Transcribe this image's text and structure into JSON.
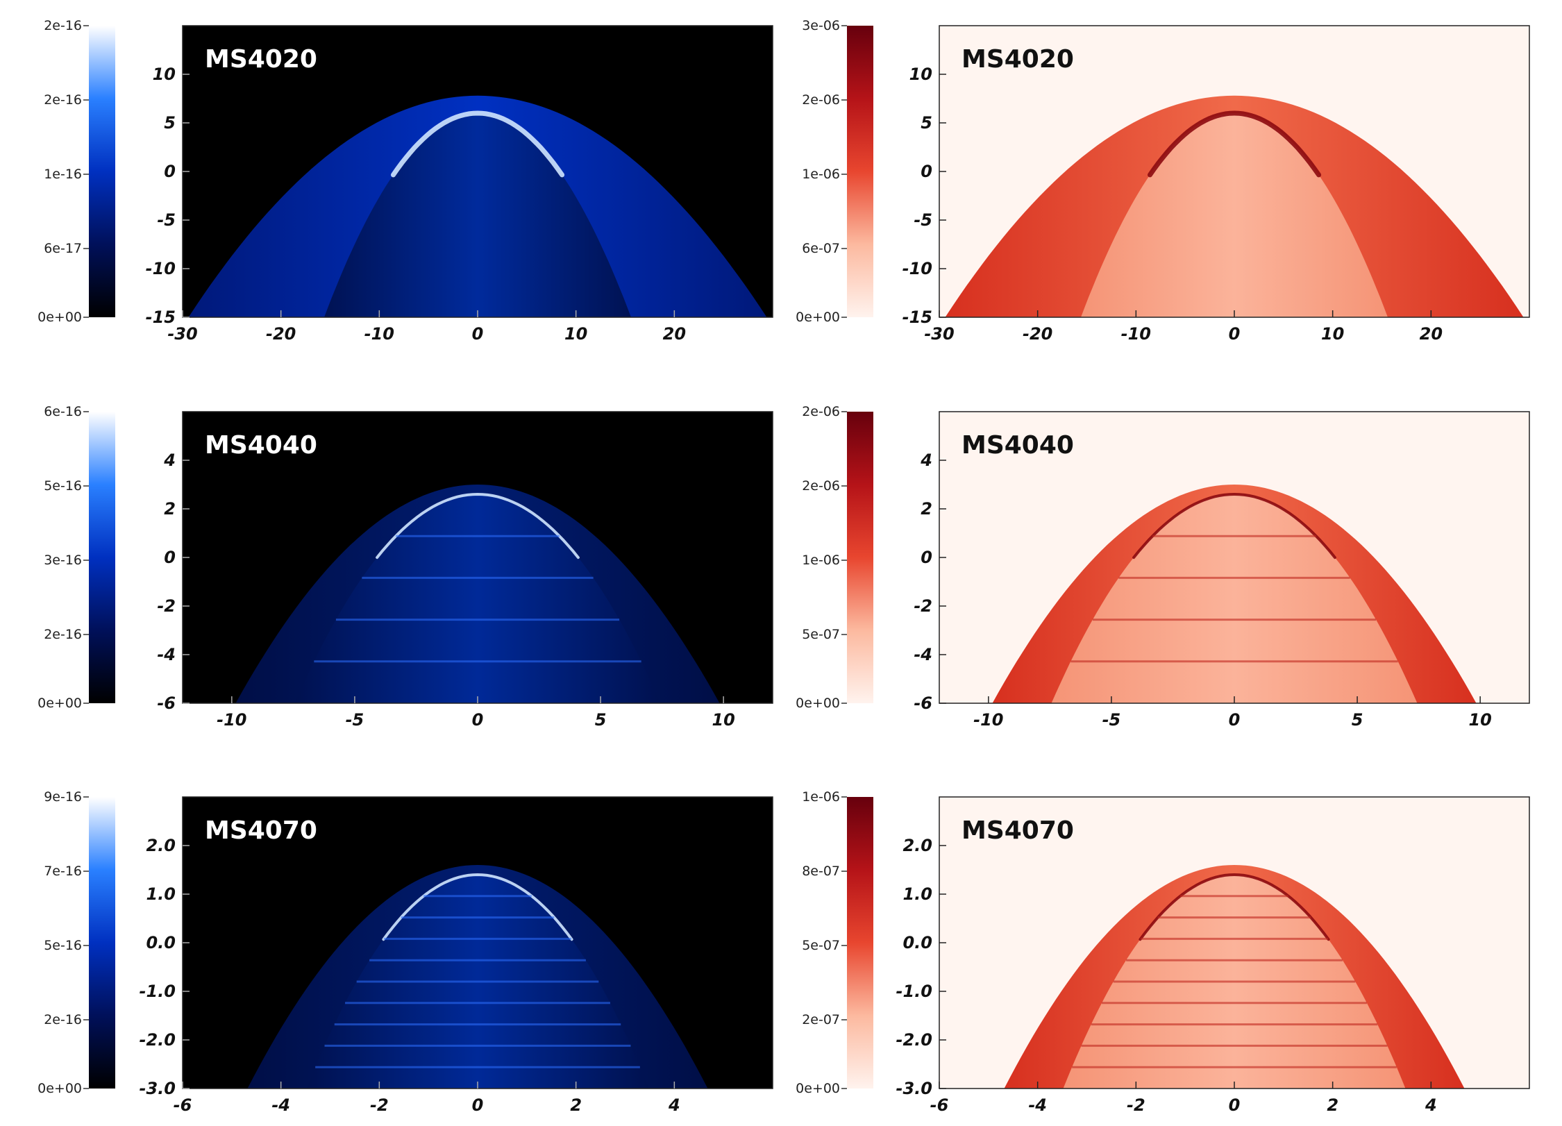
{
  "colors": {
    "blue_map": [
      "#000000",
      "#00105a",
      "#0030c0",
      "#2a80ff",
      "#ffffff"
    ],
    "red_map": [
      "#fff3ee",
      "#fcb99f",
      "#e8462f",
      "#b51318",
      "#67000d"
    ],
    "blue_background": "#000000",
    "red_background": "#fff5f0"
  },
  "chart_data": [
    {
      "type": "heatmap",
      "title": "MS4020",
      "colormap": "blues-on-black",
      "x_ticks": [
        "-30",
        "-20",
        "-10",
        "0",
        "10",
        "20"
      ],
      "x_tick_values": [
        -30,
        -20,
        -10,
        0,
        10,
        20
      ],
      "y_ticks": [
        "10",
        "5",
        "0",
        "-5",
        "-10",
        "-15"
      ],
      "y_tick_values": [
        10,
        5,
        0,
        -5,
        -10,
        -15
      ],
      "xlim": [
        -30,
        30
      ],
      "ylim": [
        -15,
        15
      ],
      "colorbar": {
        "labels": [
          "2e-16",
          "2e-16",
          "1e-16",
          "6e-17",
          "0e+00"
        ],
        "range": [
          0,
          2.5e-16
        ]
      },
      "apex_y": 7.8,
      "inner_apex_y": 6.0
    },
    {
      "type": "heatmap",
      "title": "MS4020",
      "colormap": "reds-on-white",
      "x_ticks": [
        "-30",
        "-20",
        "-10",
        "0",
        "10",
        "20"
      ],
      "x_tick_values": [
        -30,
        -20,
        -10,
        0,
        10,
        20
      ],
      "y_ticks": [
        "10",
        "5",
        "0",
        "-5",
        "-10",
        "-15"
      ],
      "y_tick_values": [
        10,
        5,
        0,
        -5,
        -10,
        -15
      ],
      "xlim": [
        -30,
        30
      ],
      "ylim": [
        -15,
        15
      ],
      "colorbar": {
        "labels": [
          "3e-06",
          "2e-06",
          "1e-06",
          "6e-07",
          "0e+00"
        ],
        "range": [
          0,
          3e-06
        ]
      },
      "apex_y": 7.8,
      "inner_apex_y": 6.0
    },
    {
      "type": "heatmap",
      "title": "MS4040",
      "colormap": "blues-on-black",
      "x_ticks": [
        "-10",
        "-5",
        "0",
        "5",
        "10"
      ],
      "x_tick_values": [
        -10,
        -5,
        0,
        5,
        10
      ],
      "y_ticks": [
        "4",
        "2",
        "0",
        "-2",
        "-4",
        "-6"
      ],
      "y_tick_values": [
        4,
        2,
        0,
        -2,
        -4,
        -6
      ],
      "xlim": [
        -12,
        12
      ],
      "ylim": [
        -6,
        6
      ],
      "colorbar": {
        "labels": [
          "6e-16",
          "5e-16",
          "3e-16",
          "2e-16",
          "0e+00"
        ],
        "range": [
          0,
          6.5e-16
        ]
      },
      "apex_y": 3.0,
      "inner_apex_y": 2.6
    },
    {
      "type": "heatmap",
      "title": "MS4040",
      "colormap": "reds-on-white",
      "x_ticks": [
        "-10",
        "-5",
        "0",
        "5",
        "10"
      ],
      "x_tick_values": [
        -10,
        -5,
        0,
        5,
        10
      ],
      "y_ticks": [
        "4",
        "2",
        "0",
        "-2",
        "-4",
        "-6"
      ],
      "y_tick_values": [
        4,
        2,
        0,
        -2,
        -4,
        -6
      ],
      "xlim": [
        -12,
        12
      ],
      "ylim": [
        -6,
        6
      ],
      "colorbar": {
        "labels": [
          "2e-06",
          "2e-06",
          "1e-06",
          "5e-07",
          "0e+00"
        ],
        "range": [
          0,
          2e-06
        ]
      },
      "apex_y": 3.0,
      "inner_apex_y": 2.6
    },
    {
      "type": "heatmap",
      "title": "MS4070",
      "colormap": "blues-on-black",
      "x_ticks": [
        "-6",
        "-4",
        "-2",
        "0",
        "2",
        "4"
      ],
      "x_tick_values": [
        -6,
        -4,
        -2,
        0,
        2,
        4
      ],
      "y_ticks": [
        "2.0",
        "1.0",
        "0.0",
        "-1.0",
        "-2.0",
        "-3.0"
      ],
      "y_tick_values": [
        2,
        1,
        0,
        -1,
        -2,
        -3
      ],
      "xlim": [
        -6,
        6
      ],
      "ylim": [
        -3,
        3
      ],
      "colorbar": {
        "labels": [
          "9e-16",
          "7e-16",
          "5e-16",
          "2e-16",
          "0e+00"
        ],
        "range": [
          0,
          9e-16
        ]
      },
      "apex_y": 1.6,
      "inner_apex_y": 1.4
    },
    {
      "type": "heatmap",
      "title": "MS4070",
      "colormap": "reds-on-white",
      "x_ticks": [
        "-6",
        "-4",
        "-2",
        "0",
        "2",
        "4"
      ],
      "x_tick_values": [
        -6,
        -4,
        -2,
        0,
        2,
        4
      ],
      "y_ticks": [
        "2.0",
        "1.0",
        "0.0",
        "-1.0",
        "-2.0",
        "-3.0"
      ],
      "y_tick_values": [
        2,
        1,
        0,
        -1,
        -2,
        -3
      ],
      "xlim": [
        -6,
        6
      ],
      "ylim": [
        -3,
        3
      ],
      "colorbar": {
        "labels": [
          "1e-06",
          "8e-07",
          "5e-07",
          "2e-07",
          "0e+00"
        ],
        "range": [
          0,
          1e-06
        ]
      },
      "apex_y": 1.6,
      "inner_apex_y": 1.4
    }
  ]
}
